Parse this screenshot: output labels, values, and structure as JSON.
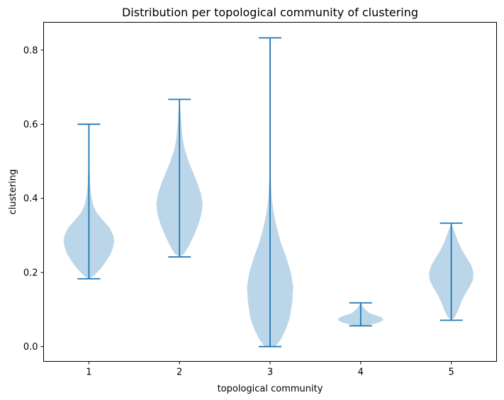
{
  "chart_data": {
    "type": "violin",
    "title": "Distribution per topological community of clustering",
    "xlabel": "topological community",
    "ylabel": "clustering",
    "categories": [
      "1",
      "2",
      "3",
      "4",
      "5"
    ],
    "x_ticks": [
      1,
      2,
      3,
      4,
      5
    ],
    "xlim": [
      0.5,
      5.5
    ],
    "ylim": [
      -0.04,
      0.875
    ],
    "y_ticks": [
      0.0,
      0.2,
      0.4,
      0.6,
      0.8
    ],
    "y_tick_labels": [
      "0.0",
      "0.2",
      "0.4",
      "0.6",
      "0.8"
    ],
    "grid": false,
    "legend": "none",
    "colors": {
      "body": "#bcd6e9",
      "line": "#1f77b4"
    },
    "violins": [
      {
        "category": "1",
        "min": 0.183,
        "max": 0.6,
        "profile": [
          [
            0.183,
            0.0
          ],
          [
            0.19,
            0.05
          ],
          [
            0.21,
            0.13
          ],
          [
            0.23,
            0.19
          ],
          [
            0.25,
            0.24
          ],
          [
            0.27,
            0.27
          ],
          [
            0.285,
            0.28
          ],
          [
            0.3,
            0.27
          ],
          [
            0.32,
            0.23
          ],
          [
            0.34,
            0.16
          ],
          [
            0.36,
            0.09
          ],
          [
            0.38,
            0.05
          ],
          [
            0.4,
            0.03
          ],
          [
            0.43,
            0.015
          ],
          [
            0.48,
            0.007
          ],
          [
            0.55,
            0.003
          ],
          [
            0.6,
            0.0
          ]
        ]
      },
      {
        "category": "2",
        "min": 0.242,
        "max": 0.667,
        "profile": [
          [
            0.242,
            0.0
          ],
          [
            0.25,
            0.05
          ],
          [
            0.27,
            0.1
          ],
          [
            0.3,
            0.16
          ],
          [
            0.33,
            0.21
          ],
          [
            0.36,
            0.245
          ],
          [
            0.385,
            0.255
          ],
          [
            0.41,
            0.24
          ],
          [
            0.44,
            0.2
          ],
          [
            0.47,
            0.15
          ],
          [
            0.5,
            0.1
          ],
          [
            0.53,
            0.06
          ],
          [
            0.56,
            0.035
          ],
          [
            0.6,
            0.02
          ],
          [
            0.63,
            0.012
          ],
          [
            0.667,
            0.0
          ]
        ]
      },
      {
        "category": "3",
        "min": 0.0,
        "max": 0.833,
        "profile": [
          [
            0.0,
            0.06
          ],
          [
            0.02,
            0.12
          ],
          [
            0.05,
            0.18
          ],
          [
            0.08,
            0.22
          ],
          [
            0.12,
            0.245
          ],
          [
            0.16,
            0.255
          ],
          [
            0.2,
            0.23
          ],
          [
            0.24,
            0.18
          ],
          [
            0.28,
            0.12
          ],
          [
            0.32,
            0.075
          ],
          [
            0.36,
            0.04
          ],
          [
            0.4,
            0.02
          ],
          [
            0.45,
            0.008
          ],
          [
            0.55,
            0.004
          ],
          [
            0.7,
            0.002
          ],
          [
            0.833,
            0.0
          ]
        ]
      },
      {
        "category": "4",
        "min": 0.056,
        "max": 0.118,
        "profile": [
          [
            0.056,
            0.05
          ],
          [
            0.06,
            0.13
          ],
          [
            0.065,
            0.2
          ],
          [
            0.07,
            0.245
          ],
          [
            0.075,
            0.25
          ],
          [
            0.08,
            0.22
          ],
          [
            0.085,
            0.16
          ],
          [
            0.09,
            0.1
          ],
          [
            0.1,
            0.05
          ],
          [
            0.11,
            0.02
          ],
          [
            0.118,
            0.0
          ]
        ]
      },
      {
        "category": "5",
        "min": 0.071,
        "max": 0.333,
        "profile": [
          [
            0.071,
            0.0
          ],
          [
            0.08,
            0.04
          ],
          [
            0.1,
            0.08
          ],
          [
            0.12,
            0.11
          ],
          [
            0.14,
            0.15
          ],
          [
            0.16,
            0.2
          ],
          [
            0.18,
            0.24
          ],
          [
            0.2,
            0.245
          ],
          [
            0.22,
            0.22
          ],
          [
            0.24,
            0.17
          ],
          [
            0.26,
            0.12
          ],
          [
            0.28,
            0.08
          ],
          [
            0.3,
            0.05
          ],
          [
            0.32,
            0.02
          ],
          [
            0.333,
            0.0
          ]
        ]
      }
    ]
  }
}
